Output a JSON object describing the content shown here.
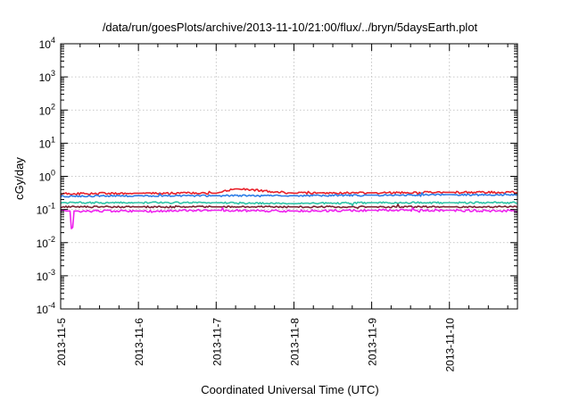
{
  "chart_data": {
    "type": "line",
    "title": "/data/run/goesPlots/archive/2013-11-10/21:00/flux/../bryn/5daysEarth.plot",
    "xlabel": "Coordinated Universal Time (UTC)",
    "ylabel": "cGy/day",
    "x_range": [
      "2013-11-05",
      "2013-11-10T21:00"
    ],
    "x_ticks": [
      "2013-11-5",
      "2013-11-6",
      "2013-11-7",
      "2013-11-8",
      "2013-11-9",
      "2013-11-10"
    ],
    "y_scale": "log",
    "ylim": [
      0.0001,
      10000
    ],
    "y_ticks": [
      {
        "base": "10",
        "exp": "4"
      },
      {
        "base": "10",
        "exp": "3"
      },
      {
        "base": "10",
        "exp": "2"
      },
      {
        "base": "10",
        "exp": "1"
      },
      {
        "base": "10",
        "exp": "0"
      },
      {
        "base": "10",
        "exp": "-1"
      },
      {
        "base": "10",
        "exp": "-2"
      },
      {
        "base": "10",
        "exp": "-3"
      },
      {
        "base": "10",
        "exp": "-4"
      }
    ],
    "grid": true,
    "series": [
      {
        "color": "#e8212b",
        "base": 0.32,
        "jitter": 0.06,
        "x": [
          "2013-11-05",
          "2013-11-06",
          "2013-11-07",
          "2013-11-07T06:00",
          "2013-11-08",
          "2013-11-09",
          "2013-11-10",
          "2013-11-10T21:00"
        ],
        "y": [
          0.3,
          0.31,
          0.31,
          0.42,
          0.31,
          0.32,
          0.33,
          0.33
        ]
      },
      {
        "color": "#2d7de6",
        "base": 0.26,
        "jitter": 0.05,
        "x": [
          "2013-11-05",
          "2013-11-06",
          "2013-11-07",
          "2013-11-08",
          "2013-11-09",
          "2013-11-10",
          "2013-11-10T21:00"
        ],
        "y": [
          0.25,
          0.26,
          0.26,
          0.26,
          0.27,
          0.28,
          0.27
        ]
      },
      {
        "color": "#2ec4a8",
        "base": 0.16,
        "jitter": 0.05,
        "x": [
          "2013-11-05",
          "2013-11-06",
          "2013-11-07",
          "2013-11-08",
          "2013-11-09",
          "2013-11-10",
          "2013-11-10T21:00"
        ],
        "y": [
          0.16,
          0.16,
          0.16,
          0.15,
          0.16,
          0.16,
          0.16
        ]
      },
      {
        "color": "#7a2030",
        "base": 0.12,
        "jitter": 0.05,
        "x": [
          "2013-11-05",
          "2013-11-06",
          "2013-11-07",
          "2013-11-08",
          "2013-11-09",
          "2013-11-10",
          "2013-11-10T21:00"
        ],
        "y": [
          0.12,
          0.12,
          0.12,
          0.12,
          0.12,
          0.12,
          0.12
        ]
      },
      {
        "color": "#ee22ee",
        "base": 0.095,
        "jitter": 0.07,
        "x": [
          "2013-11-05",
          "2013-11-05T03:00",
          "2013-11-05T03:30",
          "2013-11-05T04:00",
          "2013-11-06",
          "2013-11-07",
          "2013-11-08",
          "2013-11-09",
          "2013-11-10",
          "2013-11-10T21:00"
        ],
        "y": [
          0.09,
          0.09,
          0.012,
          0.09,
          0.09,
          0.095,
          0.09,
          0.095,
          0.095,
          0.09
        ]
      }
    ]
  }
}
